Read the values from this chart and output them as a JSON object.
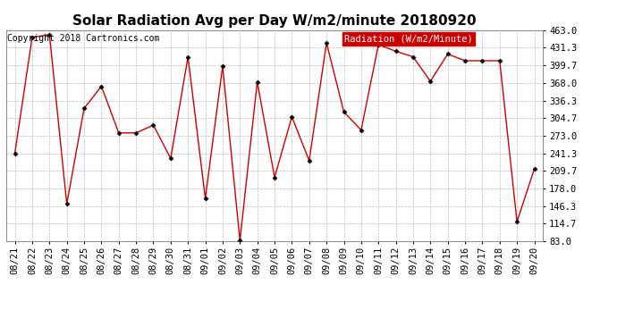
{
  "title": "Solar Radiation Avg per Day W/m2/minute 20180920",
  "copyright": "Copyright 2018 Cartronics.com",
  "legend_label": "Radiation (W/m2/Minute)",
  "dates": [
    "08/21",
    "08/22",
    "08/23",
    "08/24",
    "08/25",
    "08/26",
    "08/27",
    "08/28",
    "08/29",
    "08/30",
    "08/31",
    "09/01",
    "09/02",
    "09/03",
    "09/04",
    "09/05",
    "09/06",
    "09/07",
    "09/08",
    "09/09",
    "09/10",
    "09/11",
    "09/12",
    "09/13",
    "09/14",
    "09/15",
    "09/16",
    "09/17",
    "09/18",
    "09/19",
    "09/20"
  ],
  "values": [
    241.3,
    450.0,
    455.0,
    150.0,
    322.0,
    362.0,
    278.0,
    278.0,
    292.0,
    232.0,
    415.0,
    160.0,
    398.0,
    84.0,
    370.0,
    198.0,
    307.0,
    228.0,
    440.0,
    316.0,
    283.0,
    437.0,
    425.0,
    415.0,
    371.0,
    420.0,
    408.0,
    408.0,
    408.0,
    118.0,
    213.0
  ],
  "line_color": "#cc0000",
  "marker_color": "#000000",
  "background_color": "#ffffff",
  "grid_color": "#bbbbbb",
  "legend_bg": "#cc0000",
  "legend_text_color": "#ffffff",
  "ylim": [
    83.0,
    463.0
  ],
  "yticks": [
    83.0,
    114.7,
    146.3,
    178.0,
    209.7,
    241.3,
    273.0,
    304.7,
    336.3,
    368.0,
    399.7,
    431.3,
    463.0
  ],
  "title_fontsize": 11,
  "copyright_fontsize": 7,
  "legend_fontsize": 7.5,
  "tick_fontsize": 7.5
}
